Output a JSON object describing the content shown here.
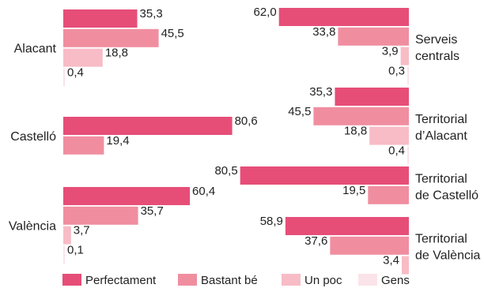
{
  "chart_data": [
    {
      "type": "bar",
      "orientation": "horizontal",
      "categories": [
        "Alacant",
        "Castelló",
        "València"
      ],
      "series": [
        {
          "name": "Perfectament",
          "values": [
            35.3,
            80.6,
            60.4
          ]
        },
        {
          "name": "Bastant bé",
          "values": [
            45.5,
            19.4,
            35.7
          ]
        },
        {
          "name": "Un poc",
          "values": [
            18.8,
            null,
            3.7
          ]
        },
        {
          "name": "Gens",
          "values": [
            0.4,
            null,
            0.1
          ]
        }
      ],
      "value_labels": {
        "Alacant": [
          "35,3",
          "45,5",
          "18,8",
          "0,4"
        ],
        "Castelló": [
          "80,6",
          "19,4"
        ],
        "València": [
          "60,4",
          "35,7",
          "3,7",
          "0,1"
        ]
      }
    },
    {
      "type": "bar",
      "orientation": "horizontal",
      "direction": "right-to-left",
      "categories": [
        [
          "Serveis",
          "centrals"
        ],
        [
          "Territorial",
          "d’Alacant"
        ],
        [
          "Territorial",
          "de Castelló"
        ],
        [
          "Territorial",
          "de València"
        ]
      ],
      "series": [
        {
          "name": "Perfectament",
          "values": [
            62.0,
            35.3,
            80.5,
            58.9
          ]
        },
        {
          "name": "Bastant bé",
          "values": [
            33.8,
            45.5,
            19.5,
            37.6
          ]
        },
        {
          "name": "Un poc",
          "values": [
            3.9,
            18.8,
            null,
            3.4
          ]
        },
        {
          "name": "Gens",
          "values": [
            0.3,
            0.4,
            null,
            null
          ]
        }
      ],
      "value_labels": {
        "Serveis centrals": [
          "62,0",
          "33,8",
          "3,9",
          "0,3"
        ],
        "Territorial d’Alacant": [
          "35,3",
          "45,5",
          "18,8",
          "0,4"
        ],
        "Territorial de Castelló": [
          "80,5",
          "19,5"
        ],
        "Territorial de València": [
          "58,9",
          "37,6",
          "3,4"
        ]
      }
    }
  ],
  "legend": {
    "placement": "bottom",
    "items": [
      {
        "label": "Perfectament",
        "color": "#e64e78"
      },
      {
        "label": "Bastant bé",
        "color": "#f08ea0"
      },
      {
        "label": "Un poc",
        "color": "#f7bcc6"
      },
      {
        "label": "Gens",
        "color": "#fbe3ea"
      }
    ]
  }
}
